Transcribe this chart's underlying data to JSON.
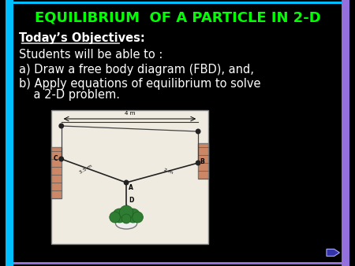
{
  "title": "EQUILIBRIUM  OF A PARTICLE IN 2-D",
  "title_color": "#00FF00",
  "title_fontsize": 13,
  "background_color": "#000000",
  "border_left_color": "#00BFFF",
  "border_right_color": "#9370DB",
  "text_color": "#FFFFFF",
  "objectives_label": "Today’s Objectives:",
  "objectives_color": "#FFFFFF",
  "line1": "Students will be able to :",
  "line2": "a) Draw a free body diagram (FBD), and,",
  "line3a": "b) Apply equations of equilibrium to solve",
  "line3b": "    a 2-D problem.",
  "text_fontsize": 10.5,
  "figsize": [
    4.5,
    3.38
  ],
  "dpi": 100
}
